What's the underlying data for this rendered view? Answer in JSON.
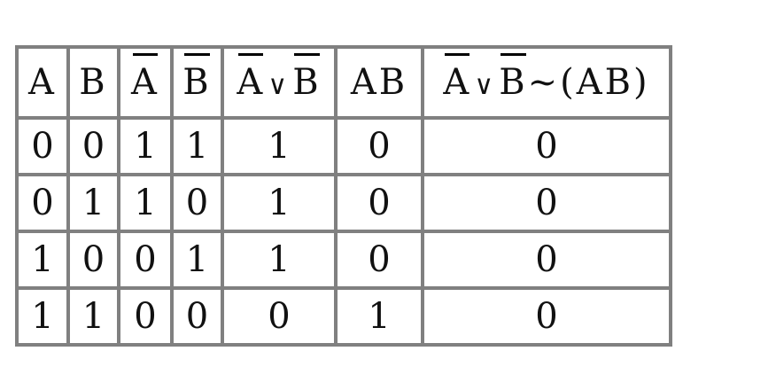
{
  "headers": [
    {
      "parts": [
        {
          "text": "A",
          "overline": false
        }
      ]
    },
    {
      "parts": [
        {
          "text": "B",
          "overline": false
        }
      ]
    },
    {
      "parts": [
        {
          "text": "A",
          "overline": true
        }
      ]
    },
    {
      "parts": [
        {
          "text": "B",
          "overline": true
        }
      ]
    },
    {
      "parts": [
        {
          "text": "A",
          "overline": true
        },
        {
          "text": "∨",
          "overline": false
        },
        {
          "text": "B",
          "overline": true
        }
      ]
    },
    {
      "parts": [
        {
          "text": "AB",
          "overline": false
        }
      ]
    },
    {
      "parts": [
        {
          "text": "A",
          "overline": true
        },
        {
          "text": "∨",
          "overline": false
        },
        {
          "text": "B",
          "overline": true
        },
        {
          "text": "~(AB)",
          "overline": false
        }
      ]
    }
  ],
  "rows": [
    [
      "0",
      "0",
      "1",
      "1",
      "1",
      "0",
      "0"
    ],
    [
      "0",
      "1",
      "1",
      "0",
      "1",
      "0",
      "0"
    ],
    [
      "1",
      "0",
      "0",
      "1",
      "1",
      "0",
      "0"
    ],
    [
      "1",
      "1",
      "0",
      "0",
      "0",
      "1",
      "0"
    ]
  ],
  "border_color": "#808080"
}
